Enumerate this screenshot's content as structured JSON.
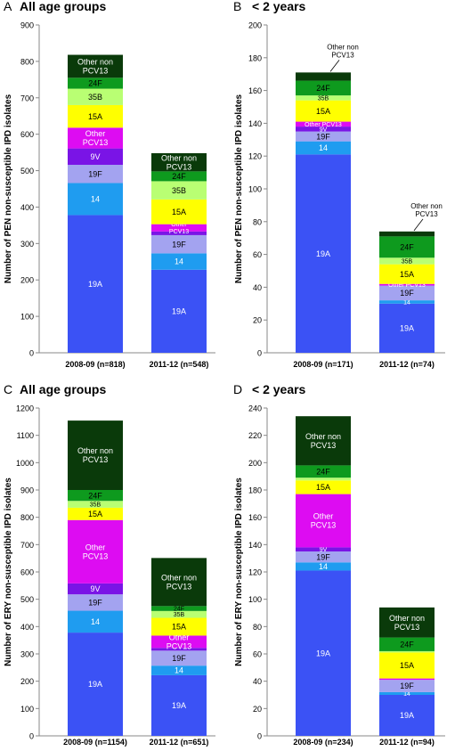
{
  "colors": {
    "19A": "#3b52f5",
    "14": "#1f9cf0",
    "19F": "#a3a3f0",
    "9V": "#7a14e6",
    "Other PCV13": "#dd0cf2",
    "15A": "#ffff00",
    "35B": "#b9ff73",
    "24F": "#0e9a1e",
    "Other non PCV13": "#0a3a0a"
  },
  "chart_data": [
    {
      "type": "bar",
      "stacked": true,
      "panel_label": "A",
      "title": "All age groups",
      "ylabel": "Number of PEN non-susceptible IPD isolates",
      "ylim": [
        0,
        900
      ],
      "yticks": [
        0,
        100,
        200,
        300,
        400,
        500,
        600,
        700,
        800,
        900
      ],
      "categories": [
        "2008-09 (n=818)",
        "2011-12 (n=548)"
      ],
      "series": [
        {
          "name": "19A",
          "values": [
            378,
            228
          ]
        },
        {
          "name": "14",
          "values": [
            88,
            45
          ]
        },
        {
          "name": "19F",
          "values": [
            50,
            50
          ]
        },
        {
          "name": "9V",
          "values": [
            45,
            10
          ]
        },
        {
          "name": "Other PCV13",
          "values": [
            57,
            20
          ]
        },
        {
          "name": "15A",
          "values": [
            62,
            68
          ]
        },
        {
          "name": "35B",
          "values": [
            45,
            50
          ]
        },
        {
          "name": "24F",
          "values": [
            30,
            27
          ]
        },
        {
          "name": "Other non PCV13",
          "values": [
            63,
            50
          ]
        }
      ],
      "segment_labels": [
        [
          "19A",
          "14",
          "19F",
          "9V",
          "Other|PCV13",
          "15A",
          "35B",
          "24F",
          "Other non|PCV13"
        ],
        [
          "19A",
          "14",
          "19F",
          "",
          "Other|PCV13",
          "15A",
          "35B",
          "24F",
          "Other non|PCV13"
        ]
      ]
    },
    {
      "type": "bar",
      "stacked": true,
      "panel_label": "B",
      "title": "< 2 years",
      "ylabel": "Number of PEN non-susceptible IPD isolates",
      "ylim": [
        0,
        200
      ],
      "yticks": [
        0,
        20,
        40,
        60,
        80,
        100,
        120,
        140,
        160,
        180,
        200
      ],
      "categories": [
        "2008-09 (n=171)",
        "2011-12 (n=74)"
      ],
      "series": [
        {
          "name": "19A",
          "values": [
            121,
            30
          ]
        },
        {
          "name": "14",
          "values": [
            8,
            2
          ]
        },
        {
          "name": "19F",
          "values": [
            6,
            9
          ]
        },
        {
          "name": "9V",
          "values": [
            3,
            0
          ]
        },
        {
          "name": "Other PCV13",
          "values": [
            3,
            1
          ]
        },
        {
          "name": "15A",
          "values": [
            13,
            12
          ]
        },
        {
          "name": "35B",
          "values": [
            3,
            4
          ]
        },
        {
          "name": "24F",
          "values": [
            9,
            13
          ]
        },
        {
          "name": "Other non PCV13",
          "values": [
            5,
            3
          ]
        }
      ],
      "segment_labels": [
        [
          "19A",
          "14",
          "19F",
          "9V",
          "Other PCV13",
          "15A",
          "35B",
          "24F",
          ""
        ],
        [
          "19A",
          "14",
          "19F",
          "",
          "Other PCV13",
          "15A",
          "35B",
          "24F",
          ""
        ]
      ],
      "callout": "Other non|PCV13"
    },
    {
      "type": "bar",
      "stacked": true,
      "panel_label": "C",
      "title": "All age groups",
      "ylabel": "Number of ERY non-susceptible IPD isolates",
      "ylim": [
        0,
        1200
      ],
      "yticks": [
        0,
        100,
        200,
        300,
        400,
        500,
        600,
        700,
        800,
        900,
        1000,
        1100,
        1200
      ],
      "categories": [
        "2008-09 (n=1154)",
        "2011-12 (n=651)"
      ],
      "series": [
        {
          "name": "19A",
          "values": [
            378,
            222
          ]
        },
        {
          "name": "14",
          "values": [
            80,
            35
          ]
        },
        {
          "name": "19F",
          "values": [
            60,
            55
          ]
        },
        {
          "name": "9V",
          "values": [
            40,
            10
          ]
        },
        {
          "name": "Other PCV13",
          "values": [
            232,
            45
          ]
        },
        {
          "name": "15A",
          "values": [
            45,
            65
          ]
        },
        {
          "name": "35B",
          "values": [
            25,
            25
          ]
        },
        {
          "name": "24F",
          "values": [
            40,
            18
          ]
        },
        {
          "name": "Other non PCV13",
          "values": [
            254,
            176
          ]
        }
      ],
      "segment_labels": [
        [
          "19A",
          "14",
          "19F",
          "9V",
          "Other|PCV13",
          "15A",
          "35B",
          "24F",
          "Other non|PCV13"
        ],
        [
          "19A",
          "14",
          "19F",
          "",
          "Other|PCV13",
          "15A",
          "35B",
          "24F",
          "Other non|PCV13"
        ]
      ]
    },
    {
      "type": "bar",
      "stacked": true,
      "panel_label": "D",
      "title": "< 2 years",
      "ylabel": "Number of ERY non-susceptible IPD isolates",
      "ylim": [
        0,
        240
      ],
      "yticks": [
        0,
        20,
        40,
        60,
        80,
        100,
        120,
        140,
        160,
        180,
        200,
        220,
        240
      ],
      "categories": [
        "2008-09 (n=234)",
        "2011-12 (n=94)"
      ],
      "series": [
        {
          "name": "19A",
          "values": [
            121,
            30
          ]
        },
        {
          "name": "14",
          "values": [
            6,
            2
          ]
        },
        {
          "name": "19F",
          "values": [
            8,
            9
          ]
        },
        {
          "name": "9V",
          "values": [
            3,
            0
          ]
        },
        {
          "name": "Other PCV13",
          "values": [
            39,
            1
          ]
        },
        {
          "name": "15A",
          "values": [
            10,
            19
          ]
        },
        {
          "name": "35B",
          "values": [
            2,
            1
          ]
        },
        {
          "name": "24F",
          "values": [
            9,
            10
          ]
        },
        {
          "name": "Other non PCV13",
          "values": [
            36,
            22
          ]
        }
      ],
      "segment_labels": [
        [
          "19A",
          "14",
          "19F",
          "9V",
          "Other|PCV13",
          "15A",
          "",
          "24F",
          "Other non|PCV13"
        ],
        [
          "19A",
          "14",
          "19F",
          "",
          "",
          "15A",
          "",
          "24F",
          "Other non|PCV13"
        ]
      ]
    }
  ]
}
